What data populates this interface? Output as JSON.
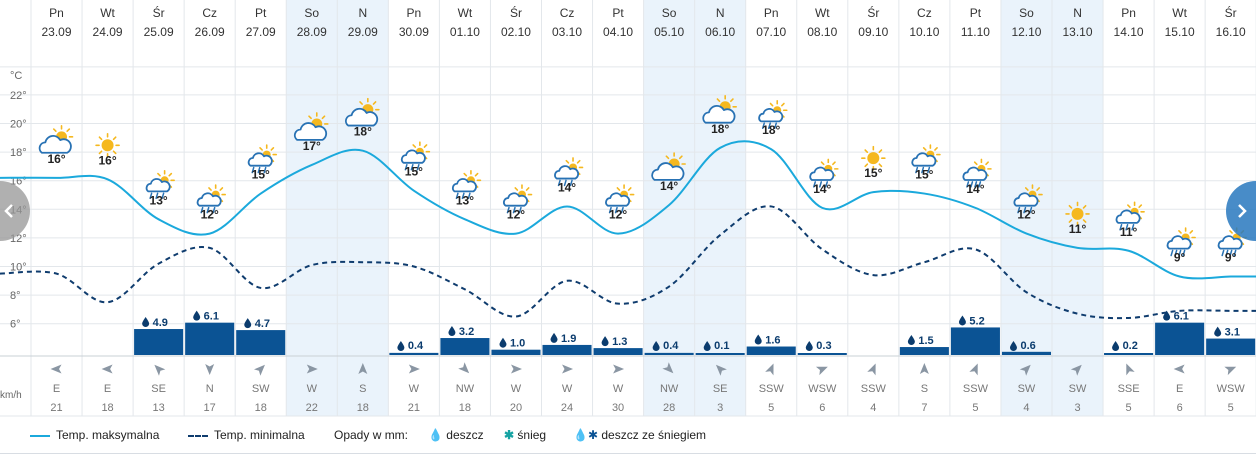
{
  "chart_data": {
    "type": "line",
    "title": "",
    "ylabel": "°C",
    "ylim": [
      4,
      24
    ],
    "y_ticks": [
      "6°",
      "8°",
      "10°",
      "12°",
      "14°",
      "16°",
      "18°",
      "20°",
      "22°"
    ],
    "wind_unit_label": "km/h",
    "days": [
      {
        "dow": "Pn",
        "date": "23.09",
        "max_label": "16°",
        "max": 16.2,
        "min": 9.5,
        "precip": null,
        "wind_dir": "E",
        "wind_speed": "21",
        "weather": "partly-cloudy",
        "weekend": false
      },
      {
        "dow": "Wt",
        "date": "24.09",
        "max_label": "16°",
        "max": 16.1,
        "min": 7.5,
        "precip": null,
        "wind_dir": "E",
        "wind_speed": "18",
        "weather": "sunny",
        "weekend": false
      },
      {
        "dow": "Śr",
        "date": "25.09",
        "max_label": "13°",
        "max": 13.3,
        "min": 10.2,
        "precip": "4.9",
        "precip_value": 4.9,
        "wind_dir": "SE",
        "wind_speed": "13",
        "weather": "sun-cloud-rain",
        "weekend": false
      },
      {
        "dow": "Cz",
        "date": "26.09",
        "max_label": "12°",
        "max": 12.3,
        "min": 11.3,
        "precip": "6.1",
        "precip_value": 6.1,
        "wind_dir": "N",
        "wind_speed": "17",
        "weather": "sun-cloud-rain",
        "weekend": false
      },
      {
        "dow": "Pt",
        "date": "27.09",
        "max_label": "15°",
        "max": 15.1,
        "min": 8.5,
        "precip": "4.7",
        "precip_value": 4.7,
        "wind_dir": "SW",
        "wind_speed": "18",
        "weather": "sun-cloud-rain",
        "weekend": false
      },
      {
        "dow": "So",
        "date": "28.09",
        "max_label": "17°",
        "max": 17.1,
        "min": 10.1,
        "precip": null,
        "wind_dir": "W",
        "wind_speed": "22",
        "weather": "partly-cloudy",
        "weekend": true
      },
      {
        "dow": "N",
        "date": "29.09",
        "max_label": "18°",
        "max": 18.1,
        "min": 10.3,
        "precip": null,
        "wind_dir": "S",
        "wind_speed": "18",
        "weather": "partly-cloudy",
        "weekend": true
      },
      {
        "dow": "Pn",
        "date": "30.09",
        "max_label": "15°",
        "max": 15.3,
        "min": 10.0,
        "precip": "0.4",
        "precip_value": 0.4,
        "wind_dir": "W",
        "wind_speed": "21",
        "weather": "sun-cloud-rain",
        "weekend": false
      },
      {
        "dow": "Wt",
        "date": "01.10",
        "max_label": "13°",
        "max": 13.3,
        "min": 8.4,
        "precip": "3.2",
        "precip_value": 3.2,
        "wind_dir": "NW",
        "wind_speed": "18",
        "weather": "sun-cloud-rain",
        "weekend": false
      },
      {
        "dow": "Śr",
        "date": "02.10",
        "max_label": "12°",
        "max": 12.3,
        "min": 6.5,
        "precip": "1.0",
        "precip_value": 1.0,
        "wind_dir": "W",
        "wind_speed": "20",
        "weather": "sun-cloud-rain",
        "weekend": false
      },
      {
        "dow": "Cz",
        "date": "03.10",
        "max_label": "14°",
        "max": 14.2,
        "min": 9.0,
        "precip": "1.9",
        "precip_value": 1.9,
        "wind_dir": "W",
        "wind_speed": "24",
        "weather": "sun-cloud-rain",
        "weekend": false
      },
      {
        "dow": "Pt",
        "date": "04.10",
        "max_label": "12°",
        "max": 12.3,
        "min": 7.4,
        "precip": "1.3",
        "precip_value": 1.3,
        "wind_dir": "W",
        "wind_speed": "30",
        "weather": "sun-cloud-rain",
        "weekend": false
      },
      {
        "dow": "So",
        "date": "05.10",
        "max_label": "14°",
        "max": 14.3,
        "min": 8.6,
        "precip": "0.4",
        "precip_value": 0.4,
        "wind_dir": "NW",
        "wind_speed": "28",
        "weather": "partly-cloudy",
        "weekend": true
      },
      {
        "dow": "N",
        "date": "06.10",
        "max_label": "18°",
        "max": 18.3,
        "min": 12.2,
        "precip": "0.1",
        "precip_value": 0.1,
        "wind_dir": "SE",
        "wind_speed": "3",
        "weather": "partly-cloudy",
        "weekend": true
      },
      {
        "dow": "Pn",
        "date": "07.10",
        "max_label": "18°",
        "max": 18.2,
        "min": 14.2,
        "precip": "1.6",
        "precip_value": 1.6,
        "wind_dir": "SSW",
        "wind_speed": "5",
        "weather": "sun-cloud-rain",
        "weekend": false
      },
      {
        "dow": "Wt",
        "date": "08.10",
        "max_label": "14°",
        "max": 14.1,
        "min": 11.2,
        "precip": "0.3",
        "precip_value": 0.3,
        "wind_dir": "WSW",
        "wind_speed": "6",
        "weather": "sun-cloud-rain",
        "weekend": false
      },
      {
        "dow": "Śr",
        "date": "09.10",
        "max_label": "15°",
        "max": 15.2,
        "min": 9.4,
        "precip": null,
        "wind_dir": "SSW",
        "wind_speed": "4",
        "weather": "sunny",
        "weekend": false
      },
      {
        "dow": "Cz",
        "date": "10.10",
        "max_label": "15°",
        "max": 15.1,
        "min": 10.3,
        "precip": "1.5",
        "precip_value": 1.5,
        "wind_dir": "S",
        "wind_speed": "7",
        "weather": "sun-cloud-rain",
        "weekend": false
      },
      {
        "dow": "Pt",
        "date": "11.10",
        "max_label": "14°",
        "max": 14.1,
        "min": 11.2,
        "precip": "5.2",
        "precip_value": 5.2,
        "wind_dir": "SSW",
        "wind_speed": "5",
        "weather": "sun-cloud-heavy-rain",
        "weekend": false
      },
      {
        "dow": "So",
        "date": "12.10",
        "max_label": "12°",
        "max": 12.3,
        "min": 8.2,
        "precip": "0.6",
        "precip_value": 0.6,
        "wind_dir": "SW",
        "wind_speed": "4",
        "weather": "sun-cloud-rain",
        "weekend": true
      },
      {
        "dow": "N",
        "date": "13.10",
        "max_label": "11°",
        "max": 11.3,
        "min": 6.7,
        "precip": null,
        "wind_dir": "SW",
        "wind_speed": "3",
        "weather": "sunny",
        "weekend": true
      },
      {
        "dow": "Pn",
        "date": "14.10",
        "max_label": "11°",
        "max": 11.1,
        "min": 6.4,
        "precip": "0.2",
        "precip_value": 0.2,
        "wind_dir": "SSE",
        "wind_speed": "5",
        "weather": "sun-cloud-rain",
        "weekend": false
      },
      {
        "dow": "Wt",
        "date": "15.10",
        "max_label": "9°",
        "max": 9.3,
        "min": 6.9,
        "precip": "6.1",
        "precip_value": 6.1,
        "wind_dir": "E",
        "wind_speed": "6",
        "weather": "sun-cloud-heavy-rain",
        "weekend": false
      },
      {
        "dow": "Śr",
        "date": "16.10",
        "max_label": "9°",
        "max": 9.3,
        "min": 6.9,
        "precip": "3.1",
        "precip_value": 3.1,
        "wind_dir": "WSW",
        "wind_speed": "5",
        "weather": "sun-cloud-heavy-rain",
        "weekend": false
      }
    ]
  },
  "legend": {
    "max_label": "Temp. maksymalna",
    "min_label": "Temp. minimalna",
    "precip_title": "Opady w mm:",
    "rain": "deszcz",
    "snow": "śnieg",
    "rain_snow": "deszcz ze śniegiem"
  },
  "colors": {
    "max_line": "#1ba9dc",
    "min_line": "#0f3c6e",
    "bar": "#0b5394",
    "weekend_bg": "#eaf3fb",
    "grid": "#e3e7eb",
    "sun": "#f5b81f",
    "cloud_stroke": "#2872b4"
  },
  "icons": {
    "prev": "chevron-left-icon",
    "next": "chevron-right-icon"
  }
}
